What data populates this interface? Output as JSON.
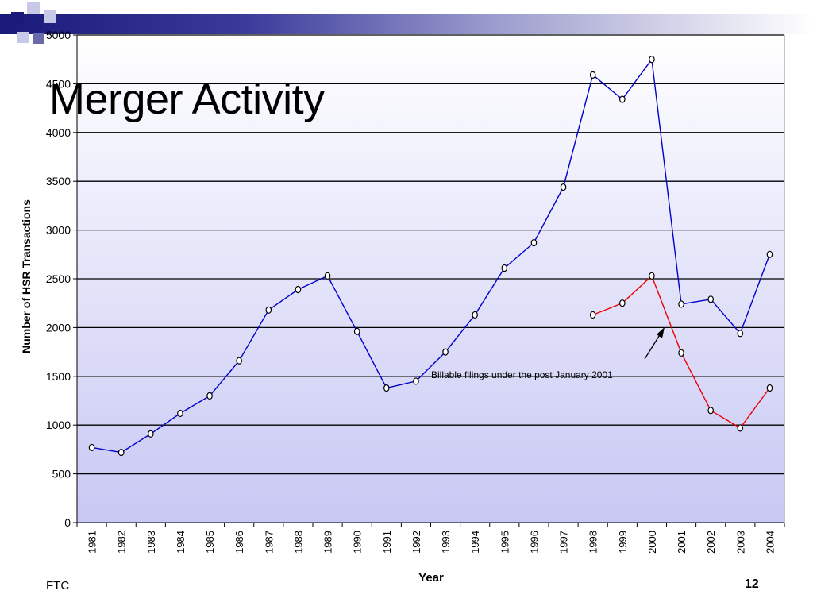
{
  "slide": {
    "title": "Merger Activity",
    "footer_left": "FTC",
    "page_number": "12"
  },
  "chart_data": {
    "type": "line",
    "xlabel": "Year",
    "ylabel": "Number of HSR Transactions",
    "ylim": [
      0,
      5000
    ],
    "y_ticks": [
      0,
      500,
      1000,
      1500,
      2000,
      2500,
      3000,
      3500,
      4000,
      4500,
      5000
    ],
    "categories": [
      "1981",
      "1982",
      "1983",
      "1984",
      "1985",
      "1986",
      "1987",
      "1988",
      "1989",
      "1990",
      "1991",
      "1992",
      "1993",
      "1994",
      "1995",
      "1996",
      "1997",
      "1998",
      "1999",
      "2000",
      "2001",
      "2002",
      "2003",
      "2004"
    ],
    "grid": true,
    "series": [
      {
        "color": "#0000cc",
        "values": [
          770,
          720,
          910,
          1120,
          1300,
          1660,
          2180,
          2390,
          2530,
          1960,
          1380,
          1450,
          1750,
          2130,
          2610,
          2870,
          3440,
          4590,
          4340,
          4750,
          2240,
          2290,
          1940,
          2750
        ]
      },
      {
        "color": "#ee0000",
        "values": [
          null,
          null,
          null,
          null,
          null,
          null,
          null,
          null,
          null,
          null,
          null,
          null,
          null,
          null,
          null,
          null,
          null,
          2130,
          2250,
          2530,
          1740,
          1150,
          970,
          1380
        ]
      }
    ],
    "annotation": "Billable filings under the post January 2001"
  }
}
